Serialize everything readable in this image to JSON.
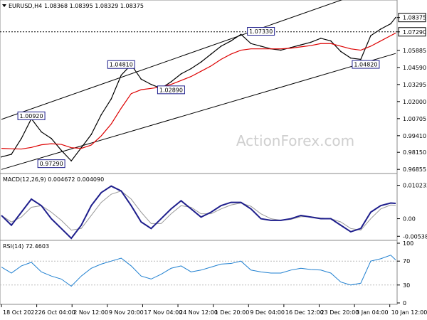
{
  "header": {
    "symbol": "EURUSD,H4",
    "ohlc": "1.08368 1.08395 1.08329 1.08375"
  },
  "watermark": "ActionForex.com",
  "colors": {
    "background": "#ffffff",
    "candle": "#000000",
    "ma_red": "#dd0000",
    "macd_line": "#1e1e8c",
    "signal_line": "#999999",
    "rsi_line": "#1e7fd0",
    "label_box": "#1e1e8c",
    "grid": "#888888"
  },
  "chart_data": [
    {
      "type": "line",
      "name": "price",
      "ylim": [
        0.9665,
        1.0895
      ],
      "y_ticks": [
        "1.08375",
        "1.07290",
        "1.05885",
        "1.04590",
        "1.03295",
        "1.02000",
        "1.00705",
        "0.99410",
        "0.98150",
        "0.96855"
      ],
      "x_ticks": [
        "18 Oct 2022",
        "26 Oct 04:00",
        "2 Nov 12:00",
        "9 Nov 20:00",
        "17 Nov 04:00",
        "24 Nov 12:00",
        "1 Dec 20:00",
        "9 Dec 04:00",
        "16 Dec 12:00",
        "23 Dec 20:00",
        "3 Jan 04:00",
        "10 Jan 12:00"
      ],
      "x": [
        0,
        4,
        8,
        12,
        16,
        20,
        24,
        28,
        32,
        36,
        40,
        44,
        48,
        52,
        56,
        60,
        64,
        68,
        72,
        76,
        80,
        84,
        88,
        92,
        96,
        100,
        104,
        108,
        112,
        116,
        120,
        124,
        128,
        132,
        136,
        140,
        144,
        148,
        152,
        156,
        158
      ],
      "close": [
        0.978,
        0.98,
        0.992,
        1.007,
        0.997,
        0.992,
        0.983,
        0.975,
        0.985,
        0.995,
        1.01,
        1.022,
        1.04,
        1.048,
        1.037,
        1.033,
        1.03,
        1.035,
        1.041,
        1.045,
        1.05,
        1.056,
        1.062,
        1.066,
        1.071,
        1.064,
        1.062,
        1.06,
        1.059,
        1.061,
        1.063,
        1.065,
        1.068,
        1.066,
        1.058,
        1.053,
        1.052,
        1.07,
        1.075,
        1.079,
        1.0838
      ],
      "ma": [
        0.9845,
        0.9842,
        0.984,
        0.9852,
        0.9872,
        0.988,
        0.9875,
        0.985,
        0.9845,
        0.987,
        0.994,
        1.003,
        1.015,
        1.026,
        1.029,
        1.03,
        1.031,
        1.033,
        1.036,
        1.039,
        1.043,
        1.047,
        1.052,
        1.056,
        1.059,
        1.06,
        1.06,
        1.06,
        1.06,
        1.0605,
        1.0615,
        1.0625,
        1.064,
        1.064,
        1.062,
        1.06,
        1.059,
        1.062,
        1.066,
        1.07,
        1.072
      ],
      "levels": [
        {
          "label": "1.00920",
          "value": 1.0092,
          "x": 12
        },
        {
          "label": "0.97290",
          "value": 0.9729,
          "x": 20
        },
        {
          "label": "1.04810",
          "value": 1.0481,
          "x": 48
        },
        {
          "label": "1.02890",
          "value": 1.0289,
          "x": 68
        },
        {
          "label": "1.07330",
          "value": 1.0733,
          "x": 104
        },
        {
          "label": "1.04820",
          "value": 1.0482,
          "x": 146
        }
      ],
      "current_price": 1.08375,
      "dotted_level": 1.0729,
      "channel": {
        "upper": [
          [
            0,
            1.0065
          ],
          [
            158,
            1.1115
          ]
        ],
        "lower": [
          [
            0,
            0.9685
          ],
          [
            158,
            1.0565
          ]
        ]
      }
    },
    {
      "type": "line",
      "name": "MACD(12,26,9) 0.004672 0.004090",
      "ylim": [
        -0.0062,
        0.0108
      ],
      "y_ticks": [
        "0.010232",
        "0.00",
        "-0.005389"
      ],
      "x": [
        0,
        4,
        8,
        12,
        16,
        20,
        24,
        28,
        32,
        36,
        40,
        44,
        48,
        52,
        56,
        60,
        64,
        68,
        72,
        76,
        80,
        84,
        88,
        92,
        96,
        100,
        104,
        108,
        112,
        116,
        120,
        124,
        128,
        132,
        136,
        140,
        144,
        148,
        152,
        156,
        158
      ],
      "macd": [
        0.001,
        -0.002,
        0.002,
        0.006,
        0.004,
        0.0,
        -0.003,
        -0.006,
        -0.002,
        0.004,
        0.008,
        0.01,
        0.0085,
        0.004,
        -0.001,
        -0.003,
        0.0,
        0.003,
        0.0055,
        0.003,
        0.0005,
        0.002,
        0.004,
        0.005,
        0.005,
        0.003,
        0.0,
        -0.0005,
        -0.0005,
        0.0,
        0.001,
        0.0005,
        0.0,
        0.0,
        -0.002,
        -0.004,
        -0.003,
        0.002,
        0.004,
        0.0048,
        0.0047
      ],
      "signal": [
        0.001,
        -0.001,
        0.0005,
        0.0035,
        0.004,
        0.002,
        -0.0005,
        -0.0035,
        -0.003,
        0.001,
        0.005,
        0.0075,
        0.0085,
        0.006,
        0.002,
        -0.0015,
        -0.0015,
        0.0015,
        0.004,
        0.0035,
        0.0015,
        0.0015,
        0.003,
        0.0042,
        0.0048,
        0.0038,
        0.0015,
        0.0,
        -0.0005,
        -0.0002,
        0.0006,
        0.0006,
        0.0002,
        0.0,
        -0.001,
        -0.003,
        -0.0035,
        0.0,
        0.003,
        0.0042,
        0.0041
      ]
    },
    {
      "type": "line",
      "name": "RSI(14) 72.4603",
      "ylim": [
        0,
        100
      ],
      "y_ticks": [
        "100",
        "70",
        "30",
        "0"
      ],
      "x": [
        0,
        4,
        8,
        12,
        16,
        20,
        24,
        28,
        32,
        36,
        40,
        44,
        48,
        52,
        56,
        60,
        64,
        68,
        72,
        76,
        80,
        84,
        88,
        92,
        96,
        100,
        104,
        108,
        112,
        116,
        120,
        124,
        128,
        132,
        136,
        140,
        144,
        148,
        152,
        156,
        158
      ],
      "values": [
        60,
        50,
        62,
        68,
        52,
        45,
        40,
        28,
        45,
        58,
        65,
        70,
        75,
        62,
        45,
        40,
        48,
        58,
        62,
        52,
        55,
        60,
        65,
        66,
        70,
        55,
        52,
        50,
        50,
        55,
        58,
        56,
        55,
        50,
        35,
        30,
        33,
        70,
        74,
        80,
        72
      ]
    }
  ]
}
